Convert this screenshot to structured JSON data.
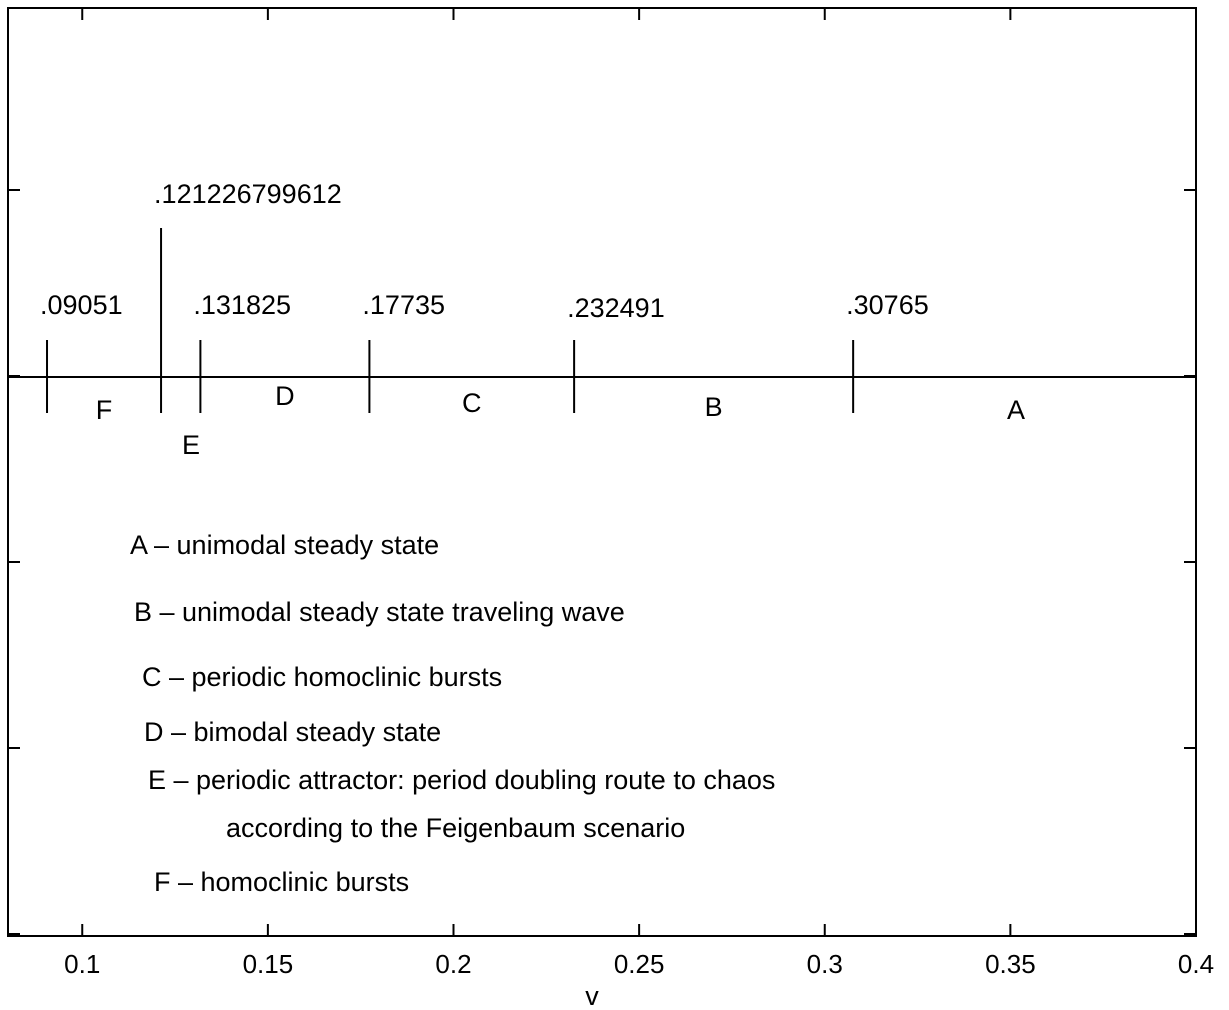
{
  "chart_data": {
    "type": "diagram",
    "xlabel": "v",
    "xlim": [
      0.08,
      0.4
    ],
    "x_ticks": [
      "0.1",
      "0.15",
      "0.2",
      "0.25",
      "0.3",
      "0.35",
      "0.4"
    ],
    "boundaries": [
      {
        "value": 0.09051,
        "label": ".09051"
      },
      {
        "value": 0.121226799612,
        "label": ".121226799612"
      },
      {
        "value": 0.131825,
        "label": ".131825"
      },
      {
        "value": 0.17735,
        "label": ".17735"
      },
      {
        "value": 0.232491,
        "label": ".232491"
      },
      {
        "value": 0.30765,
        "label": ".30765"
      }
    ],
    "regions": [
      {
        "letter": "F",
        "from": 0.09051,
        "to": 0.121226799612
      },
      {
        "letter": "E",
        "from": 0.121226799612,
        "to": 0.131825
      },
      {
        "letter": "D",
        "from": 0.131825,
        "to": 0.17735
      },
      {
        "letter": "C",
        "from": 0.17735,
        "to": 0.232491
      },
      {
        "letter": "B",
        "from": 0.232491,
        "to": 0.30765
      },
      {
        "letter": "A",
        "from": 0.30765,
        "to": 0.4
      }
    ],
    "legend": [
      "A – unimodal steady state",
      "B – unimodal steady state traveling wave",
      "C – periodic homoclinic bursts",
      "D – bimodal steady state",
      "E – periodic attractor: period doubling route to chaos",
      "according to the Feigenbaum scenario",
      "F – homoclinic bursts"
    ]
  }
}
